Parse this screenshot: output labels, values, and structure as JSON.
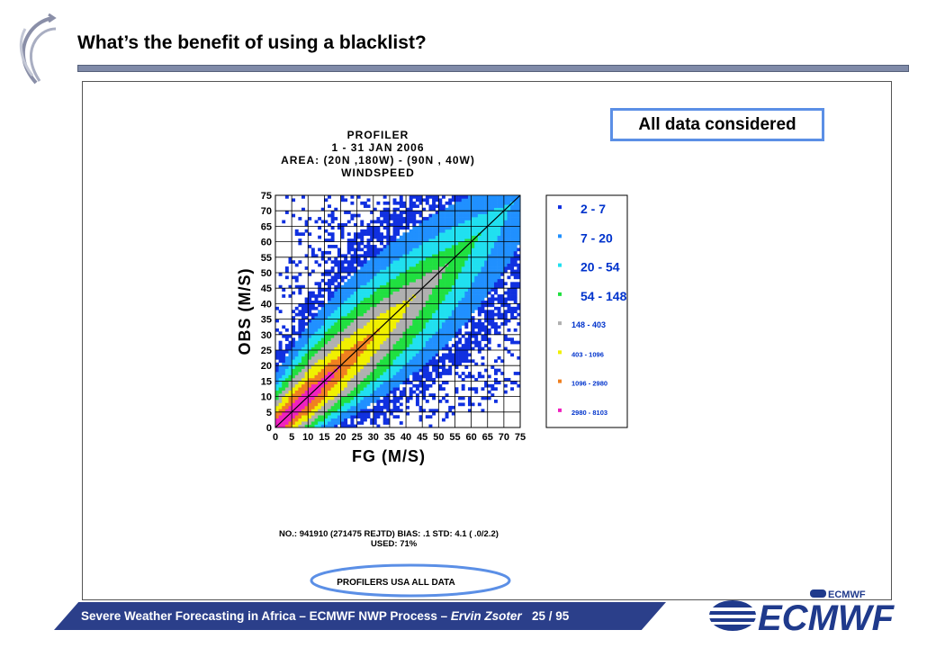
{
  "slide": {
    "title": "What’s the benefit of using a blacklist?",
    "badge": "All data considered",
    "footer": {
      "text": "Severe Weather Forecasting in Africa – ECMWF NWP Process – ",
      "author": "Ervin Zsoter",
      "page": "25 / 95"
    },
    "logo_text": "ECMWF",
    "logo_small_text": "ECMWF"
  },
  "colors": {
    "title_rule": "#7f8aa8",
    "footer_bar": "#2b3f8a",
    "badge_border": "#5b8fe6",
    "ellipse": "#5b8fe6",
    "logo": "#1f3a8c"
  },
  "chart_data": {
    "type": "heatmap",
    "title_lines": [
      "PROFILER",
      "1 - 31 JAN 2006",
      "AREA: (20N ,180W) - (90N , 40W)",
      "WINDSPEED"
    ],
    "xlabel": "FG (M/S)",
    "ylabel": "OBS (M/S)",
    "xlim": [
      0,
      75
    ],
    "ylim": [
      0,
      75
    ],
    "xticks": [
      0,
      5,
      10,
      15,
      20,
      25,
      30,
      35,
      40,
      45,
      50,
      55,
      60,
      65,
      70,
      75
    ],
    "yticks": [
      0,
      5,
      10,
      15,
      20,
      25,
      30,
      35,
      40,
      45,
      50,
      55,
      60,
      65,
      70,
      75
    ],
    "grid": true,
    "diagonal_line": true,
    "legend": {
      "placement": "right",
      "entries": [
        {
          "label": "2 - 7",
          "color": "#1030e0"
        },
        {
          "label": "7 - 20",
          "color": "#2090ff"
        },
        {
          "label": "20 - 54",
          "color": "#20e0f0"
        },
        {
          "label": "54 - 148",
          "color": "#20e040"
        },
        {
          "label": "148 - 403",
          "color": "#b0b0b0"
        },
        {
          "label": "403 - 1096",
          "color": "#f0f000"
        },
        {
          "label": "1096 - 2980",
          "color": "#f08020"
        },
        {
          "label": "2980 - 8103",
          "color": "#f020c0"
        }
      ]
    },
    "stats": {
      "line1": "NO.: 941910 (271475 REJTD) BIAS: .1 STD: 4.1 ( .0/2.2)",
      "line2": "USED: 71%"
    },
    "caption": "PROFILERS USA ALL DATA"
  }
}
